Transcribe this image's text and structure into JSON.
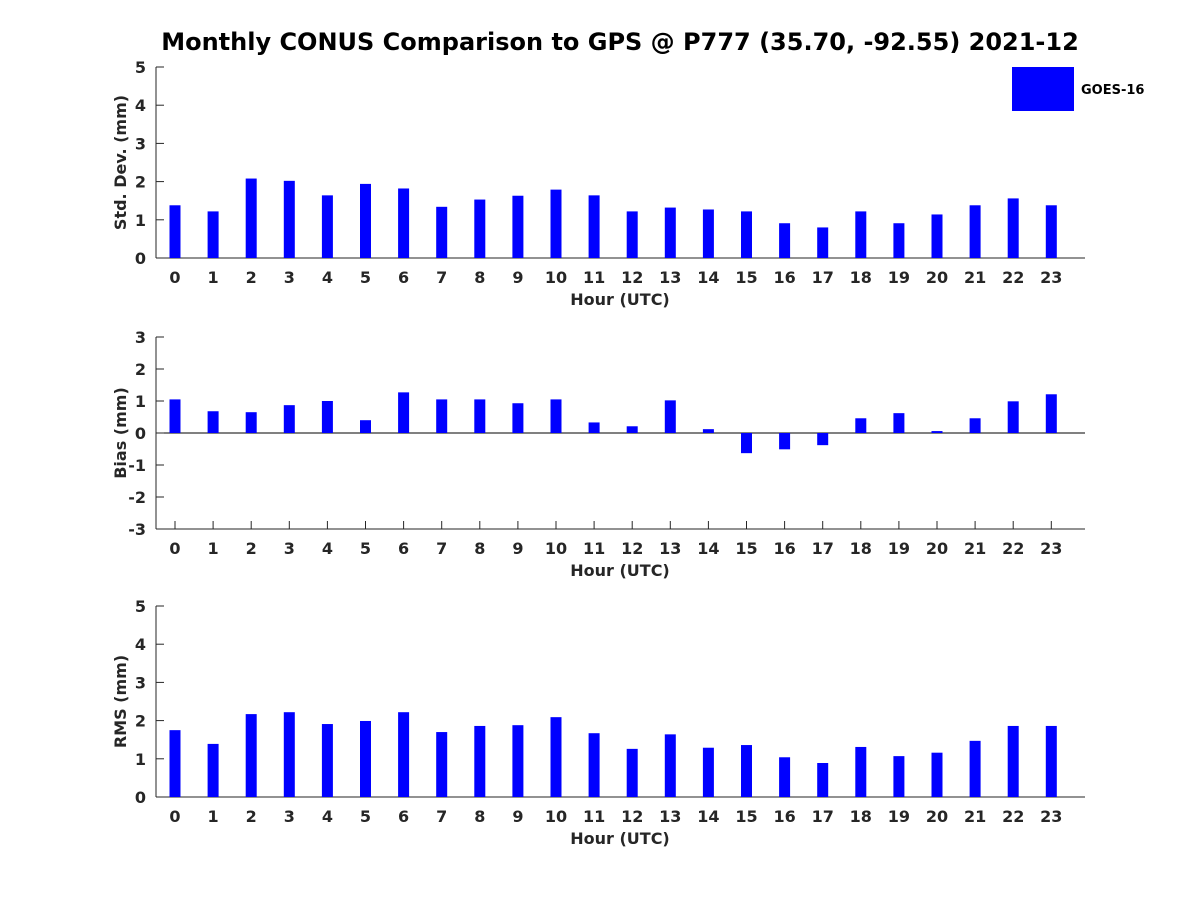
{
  "title": "Monthly CONUS Comparison to GPS @ P777 (35.70, -92.55) 2021-12",
  "legend": {
    "label": "GOES-16",
    "color": "#0000ff"
  },
  "chart_data": [
    {
      "type": "bar",
      "categories": [
        "0",
        "1",
        "2",
        "3",
        "4",
        "5",
        "6",
        "7",
        "8",
        "9",
        "10",
        "11",
        "12",
        "13",
        "14",
        "15",
        "16",
        "17",
        "18",
        "19",
        "20",
        "21",
        "22",
        "23"
      ],
      "series": [
        {
          "name": "GOES-16",
          "values": [
            1.38,
            1.22,
            2.08,
            2.02,
            1.64,
            1.94,
            1.82,
            1.34,
            1.53,
            1.63,
            1.79,
            1.64,
            1.22,
            1.32,
            1.27,
            1.22,
            0.91,
            0.8,
            1.22,
            0.91,
            1.14,
            1.38,
            1.56,
            1.38
          ]
        }
      ],
      "xlabel": "Hour (UTC)",
      "ylabel": "Std. Dev. (mm)",
      "ylim": [
        0,
        5
      ],
      "yticks": [
        0,
        1,
        2,
        3,
        4,
        5
      ],
      "legend": "top-right"
    },
    {
      "type": "bar",
      "categories": [
        "0",
        "1",
        "2",
        "3",
        "4",
        "5",
        "6",
        "7",
        "8",
        "9",
        "10",
        "11",
        "12",
        "13",
        "14",
        "15",
        "16",
        "17",
        "18",
        "19",
        "20",
        "21",
        "22",
        "23"
      ],
      "series": [
        {
          "name": "GOES-16",
          "values": [
            1.05,
            0.68,
            0.65,
            0.87,
            1.0,
            0.4,
            1.27,
            1.05,
            1.05,
            0.93,
            1.05,
            0.33,
            0.21,
            1.02,
            0.12,
            -0.63,
            -0.51,
            -0.38,
            0.46,
            0.62,
            0.06,
            0.46,
            0.99,
            1.21
          ]
        }
      ],
      "xlabel": "Hour (UTC)",
      "ylabel": "Bias (mm)",
      "ylim": [
        -3,
        3
      ],
      "yticks": [
        -3,
        -2,
        -1,
        0,
        1,
        2,
        3
      ],
      "zero_line": true
    },
    {
      "type": "bar",
      "categories": [
        "0",
        "1",
        "2",
        "3",
        "4",
        "5",
        "6",
        "7",
        "8",
        "9",
        "10",
        "11",
        "12",
        "13",
        "14",
        "15",
        "16",
        "17",
        "18",
        "19",
        "20",
        "21",
        "22",
        "23"
      ],
      "series": [
        {
          "name": "GOES-16",
          "values": [
            1.75,
            1.39,
            2.17,
            2.22,
            1.91,
            1.99,
            2.22,
            1.7,
            1.86,
            1.88,
            2.09,
            1.67,
            1.26,
            1.64,
            1.29,
            1.36,
            1.04,
            0.89,
            1.31,
            1.07,
            1.16,
            1.47,
            1.86,
            1.86
          ]
        }
      ],
      "xlabel": "Hour (UTC)",
      "ylabel": "RMS (mm)",
      "ylim": [
        0,
        5
      ],
      "yticks": [
        0,
        1,
        2,
        3,
        4,
        5
      ]
    }
  ]
}
